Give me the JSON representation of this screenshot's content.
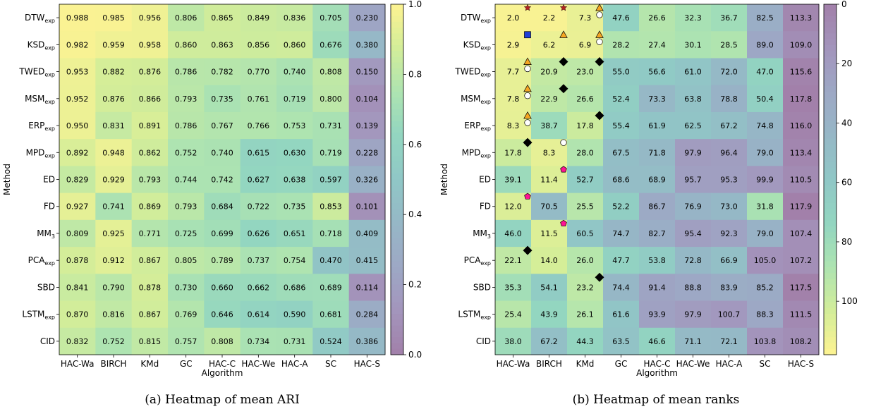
{
  "chart_data": [
    {
      "type": "heatmap",
      "caption": "(a)  Heatmap of mean ARI",
      "xlabel": "Algorithm",
      "ylabel": "Method",
      "x_categories": [
        "HAC-Wa",
        "BIRCH",
        "KMd",
        "GC",
        "HAC-C",
        "HAC-We",
        "HAC-A",
        "SC",
        "HAC-S"
      ],
      "y_categories": [
        {
          "base": "DTW",
          "sub": "exp"
        },
        {
          "base": "KSD",
          "sub": "exp"
        },
        {
          "base": "TWED",
          "sub": "exp"
        },
        {
          "base": "MSM",
          "sub": "exp"
        },
        {
          "base": "ERP",
          "sub": "exp"
        },
        {
          "base": "MPD",
          "sub": "exp"
        },
        {
          "base": "ED",
          "sub": ""
        },
        {
          "base": "FD",
          "sub": ""
        },
        {
          "base": "MM",
          "sub": "3"
        },
        {
          "base": "PCA",
          "sub": "exp"
        },
        {
          "base": "SBD",
          "sub": ""
        },
        {
          "base": "LSTM",
          "sub": "exp"
        },
        {
          "base": "CID",
          "sub": ""
        }
      ],
      "values": [
        [
          "0.988",
          "0.985",
          "0.956",
          "0.806",
          "0.865",
          "0.849",
          "0.836",
          "0.705",
          "0.230"
        ],
        [
          "0.982",
          "0.959",
          "0.958",
          "0.860",
          "0.863",
          "0.856",
          "0.860",
          "0.676",
          "0.380"
        ],
        [
          "0.953",
          "0.882",
          "0.876",
          "0.786",
          "0.782",
          "0.770",
          "0.740",
          "0.808",
          "0.150"
        ],
        [
          "0.952",
          "0.876",
          "0.866",
          "0.793",
          "0.735",
          "0.761",
          "0.719",
          "0.800",
          "0.104"
        ],
        [
          "0.950",
          "0.831",
          "0.891",
          "0.786",
          "0.767",
          "0.766",
          "0.753",
          "0.731",
          "0.139"
        ],
        [
          "0.892",
          "0.948",
          "0.862",
          "0.752",
          "0.740",
          "0.615",
          "0.630",
          "0.719",
          "0.228"
        ],
        [
          "0.829",
          "0.929",
          "0.793",
          "0.744",
          "0.742",
          "0.627",
          "0.638",
          "0.597",
          "0.326"
        ],
        [
          "0.927",
          "0.741",
          "0.869",
          "0.793",
          "0.684",
          "0.722",
          "0.735",
          "0.853",
          "0.101"
        ],
        [
          "0.809",
          "0.925",
          "0.771",
          "0.725",
          "0.699",
          "0.626",
          "0.651",
          "0.718",
          "0.409"
        ],
        [
          "0.878",
          "0.912",
          "0.867",
          "0.805",
          "0.789",
          "0.737",
          "0.754",
          "0.470",
          "0.415"
        ],
        [
          "0.841",
          "0.790",
          "0.878",
          "0.730",
          "0.660",
          "0.662",
          "0.686",
          "0.689",
          "0.114"
        ],
        [
          "0.870",
          "0.816",
          "0.867",
          "0.769",
          "0.646",
          "0.614",
          "0.590",
          "0.681",
          "0.284"
        ],
        [
          "0.832",
          "0.752",
          "0.815",
          "0.757",
          "0.808",
          "0.734",
          "0.731",
          "0.524",
          "0.386"
        ]
      ],
      "colorbar": {
        "min": 0.0,
        "max": 1.0,
        "reversed": false,
        "ticks": [
          0.0,
          0.2,
          0.4,
          0.6,
          0.8,
          1.0
        ],
        "tick_labels": [
          "0.0",
          "0.2",
          "0.4",
          "0.6",
          "0.8",
          "1.0"
        ]
      },
      "colormap": "viridis, alpha 0.5",
      "markers": []
    },
    {
      "type": "heatmap",
      "caption": "(b)  Heatmap of mean ranks",
      "xlabel": "Algorithm",
      "ylabel": "Method",
      "x_categories": [
        "HAC-Wa",
        "BIRCH",
        "KMd",
        "GC",
        "HAC-C",
        "HAC-We",
        "HAC-A",
        "SC",
        "HAC-S"
      ],
      "y_categories": [
        {
          "base": "DTW",
          "sub": "exp"
        },
        {
          "base": "KSD",
          "sub": "exp"
        },
        {
          "base": "TWED",
          "sub": "exp"
        },
        {
          "base": "MSM",
          "sub": "exp"
        },
        {
          "base": "ERP",
          "sub": "exp"
        },
        {
          "base": "MPD",
          "sub": "exp"
        },
        {
          "base": "ED",
          "sub": ""
        },
        {
          "base": "FD",
          "sub": ""
        },
        {
          "base": "MM",
          "sub": "3"
        },
        {
          "base": "PCA",
          "sub": "exp"
        },
        {
          "base": "SBD",
          "sub": ""
        },
        {
          "base": "LSTM",
          "sub": "exp"
        },
        {
          "base": "CID",
          "sub": ""
        }
      ],
      "values": [
        [
          "2.0",
          "2.2",
          "7.3",
          "47.6",
          "26.6",
          "32.3",
          "36.7",
          "82.5",
          "113.3"
        ],
        [
          "2.9",
          "6.2",
          "6.9",
          "28.2",
          "27.4",
          "30.1",
          "28.5",
          "89.0",
          "109.0"
        ],
        [
          "7.7",
          "20.9",
          "23.0",
          "55.0",
          "56.6",
          "61.0",
          "72.0",
          "47.0",
          "115.6"
        ],
        [
          "7.8",
          "22.9",
          "26.6",
          "52.4",
          "73.3",
          "63.8",
          "78.8",
          "50.4",
          "117.8"
        ],
        [
          "8.3",
          "38.7",
          "17.8",
          "55.4",
          "61.9",
          "62.5",
          "67.2",
          "74.8",
          "116.0"
        ],
        [
          "17.8",
          "8.3",
          "28.0",
          "67.5",
          "71.8",
          "97.9",
          "96.4",
          "79.0",
          "113.4"
        ],
        [
          "39.1",
          "11.4",
          "52.7",
          "68.6",
          "68.9",
          "95.7",
          "95.3",
          "99.9",
          "110.5"
        ],
        [
          "12.0",
          "70.5",
          "25.5",
          "52.2",
          "86.7",
          "76.9",
          "73.0",
          "31.8",
          "117.9"
        ],
        [
          "46.0",
          "11.5",
          "60.5",
          "74.7",
          "82.7",
          "95.4",
          "92.3",
          "79.0",
          "107.4"
        ],
        [
          "22.1",
          "14.0",
          "26.0",
          "47.7",
          "53.8",
          "72.8",
          "66.9",
          "105.0",
          "107.2"
        ],
        [
          "35.3",
          "54.1",
          "23.2",
          "74.4",
          "91.4",
          "88.8",
          "83.9",
          "85.2",
          "117.5"
        ],
        [
          "25.4",
          "43.9",
          "26.1",
          "61.6",
          "93.9",
          "97.9",
          "100.7",
          "88.3",
          "111.5"
        ],
        [
          "38.0",
          "67.2",
          "44.3",
          "63.5",
          "46.6",
          "71.1",
          "72.1",
          "103.8",
          "108.2"
        ]
      ],
      "colorbar": {
        "min": 0,
        "max": 118,
        "reversed": true,
        "ticks": [
          0,
          20,
          40,
          60,
          80,
          100
        ],
        "tick_labels": [
          "0",
          "20",
          "40",
          "60",
          "80",
          "100"
        ]
      },
      "colormap": "viridis reversed, alpha 0.5",
      "markers": [
        {
          "row": 0,
          "col": 0,
          "shape": "star",
          "color": "#b22222"
        },
        {
          "row": 0,
          "col": 1,
          "shape": "star",
          "color": "#b22222"
        },
        {
          "row": 0,
          "col": 2,
          "shape": "triangle",
          "color": "#f5a623"
        },
        {
          "row": 0,
          "col": 2,
          "shape": "circle",
          "color": "#ffffff"
        },
        {
          "row": 1,
          "col": 0,
          "shape": "square",
          "color": "#1f3fd6"
        },
        {
          "row": 1,
          "col": 1,
          "shape": "triangle",
          "color": "#f5a623"
        },
        {
          "row": 1,
          "col": 2,
          "shape": "triangle",
          "color": "#f5a623"
        },
        {
          "row": 1,
          "col": 2,
          "shape": "circle",
          "color": "#ffffff"
        },
        {
          "row": 2,
          "col": 0,
          "shape": "triangle",
          "color": "#f5a623"
        },
        {
          "row": 2,
          "col": 0,
          "shape": "circle",
          "color": "#ffffff"
        },
        {
          "row": 2,
          "col": 1,
          "shape": "diamond",
          "color": "#000000"
        },
        {
          "row": 2,
          "col": 2,
          "shape": "diamond",
          "color": "#000000"
        },
        {
          "row": 3,
          "col": 0,
          "shape": "triangle",
          "color": "#f5a623"
        },
        {
          "row": 3,
          "col": 0,
          "shape": "circle",
          "color": "#ffffff"
        },
        {
          "row": 3,
          "col": 1,
          "shape": "diamond",
          "color": "#000000"
        },
        {
          "row": 4,
          "col": 0,
          "shape": "triangle",
          "color": "#f5a623"
        },
        {
          "row": 4,
          "col": 0,
          "shape": "circle",
          "color": "#ffffff"
        },
        {
          "row": 4,
          "col": 2,
          "shape": "diamond",
          "color": "#000000"
        },
        {
          "row": 5,
          "col": 0,
          "shape": "diamond",
          "color": "#000000"
        },
        {
          "row": 5,
          "col": 1,
          "shape": "circle",
          "color": "#ffffff"
        },
        {
          "row": 6,
          "col": 1,
          "shape": "pentagon",
          "color": "#ff1493"
        },
        {
          "row": 7,
          "col": 0,
          "shape": "pentagon",
          "color": "#ff1493"
        },
        {
          "row": 8,
          "col": 1,
          "shape": "pentagon",
          "color": "#ff1493"
        },
        {
          "row": 9,
          "col": 0,
          "shape": "diamond",
          "color": "#000000"
        },
        {
          "row": 10,
          "col": 2,
          "shape": "diamond",
          "color": "#000000"
        }
      ]
    }
  ]
}
